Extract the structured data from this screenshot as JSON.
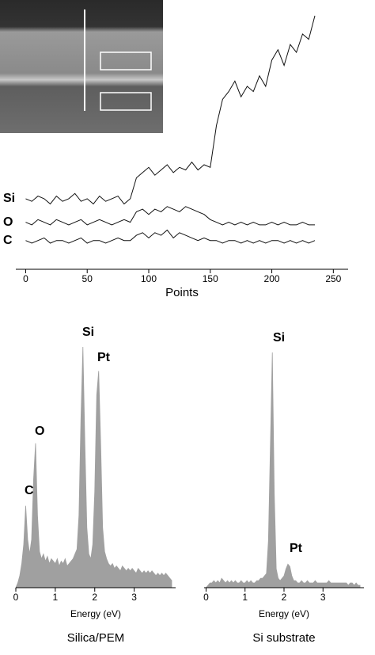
{
  "chart_data": [
    {
      "type": "line",
      "xlabel": "Points",
      "x": [
        0,
        5,
        10,
        15,
        20,
        25,
        30,
        35,
        40,
        45,
        50,
        55,
        60,
        65,
        70,
        75,
        80,
        85,
        90,
        95,
        100,
        105,
        110,
        115,
        120,
        125,
        130,
        135,
        140,
        145,
        150,
        155,
        160,
        165,
        170,
        175,
        180,
        185,
        190,
        195,
        200,
        205,
        210,
        215,
        220,
        225,
        230,
        235
      ],
      "series": [
        {
          "name": "Si",
          "color": "#111111",
          "values": [
            27,
            26,
            28,
            27,
            25,
            28,
            26,
            27,
            29,
            26,
            27,
            25,
            28,
            26,
            27,
            28,
            25,
            27,
            35,
            37,
            39,
            36,
            38,
            40,
            37,
            39,
            38,
            41,
            38,
            40,
            39,
            55,
            65,
            68,
            72,
            66,
            70,
            68,
            74,
            70,
            80,
            84,
            78,
            86,
            83,
            90,
            88,
            97
          ]
        },
        {
          "name": "O",
          "color": "#111111",
          "values": [
            18,
            17,
            19,
            18,
            17,
            19,
            18,
            17,
            18,
            19,
            17,
            18,
            19,
            18,
            17,
            18,
            19,
            18,
            22,
            23,
            21,
            23,
            22,
            24,
            23,
            22,
            24,
            23,
            22,
            21,
            19,
            18,
            17,
            18,
            17,
            18,
            17,
            18,
            17,
            17,
            18,
            17,
            18,
            17,
            17,
            18,
            17,
            17
          ]
        },
        {
          "name": "C",
          "color": "#111111",
          "values": [
            11,
            10,
            11,
            12,
            10,
            11,
            11,
            10,
            11,
            12,
            10,
            11,
            11,
            10,
            11,
            12,
            11,
            11,
            13,
            14,
            12,
            14,
            13,
            15,
            12,
            14,
            13,
            12,
            11,
            12,
            11,
            11,
            10,
            11,
            11,
            10,
            11,
            10,
            11,
            10,
            11,
            11,
            10,
            11,
            10,
            11,
            10,
            11
          ]
        }
      ],
      "xlim": [
        -8,
        262
      ],
      "xticks": [
        0,
        50,
        100,
        150,
        200,
        250
      ],
      "ylim": [
        0,
        100
      ]
    },
    {
      "type": "area",
      "xlabel": "Energy (eV)",
      "caption": "Silica/PEM",
      "color": "#a0a0a0",
      "x": [
        0,
        0.05,
        0.1,
        0.15,
        0.2,
        0.25,
        0.3,
        0.35,
        0.4,
        0.45,
        0.5,
        0.55,
        0.6,
        0.65,
        0.7,
        0.75,
        0.8,
        0.85,
        0.9,
        0.95,
        1,
        1.05,
        1.1,
        1.15,
        1.2,
        1.25,
        1.3,
        1.35,
        1.4,
        1.45,
        1.5,
        1.55,
        1.6,
        1.65,
        1.7,
        1.75,
        1.8,
        1.85,
        1.9,
        1.95,
        2,
        2.05,
        2.1,
        2.15,
        2.2,
        2.25,
        2.3,
        2.35,
        2.4,
        2.45,
        2.5,
        2.55,
        2.6,
        2.65,
        2.7,
        2.75,
        2.8,
        2.85,
        2.9,
        2.95,
        3,
        3.05,
        3.1,
        3.15,
        3.2,
        3.25,
        3.3,
        3.35,
        3.4,
        3.45,
        3.5,
        3.55,
        3.6,
        3.65,
        3.7,
        3.75,
        3.8,
        3.85,
        3.9,
        3.95
      ],
      "values": [
        0,
        2,
        5,
        10,
        18,
        34,
        20,
        14,
        20,
        45,
        60,
        30,
        15,
        12,
        14,
        11,
        13,
        10,
        12,
        11,
        10,
        12,
        9,
        11,
        10,
        12,
        9,
        10,
        11,
        12,
        14,
        16,
        30,
        70,
        100,
        60,
        25,
        14,
        12,
        18,
        40,
        80,
        90,
        60,
        25,
        15,
        12,
        10,
        9,
        10,
        8,
        9,
        8,
        7,
        9,
        8,
        7,
        8,
        7,
        8,
        7,
        6,
        8,
        7,
        6,
        7,
        6,
        7,
        6,
        7,
        6,
        5,
        6,
        5,
        6,
        5,
        6,
        5,
        4,
        3
      ],
      "annotations": [
        "Si",
        "Pt",
        "O",
        "C"
      ],
      "xlim": [
        0,
        4.05
      ],
      "xticks": [
        0,
        1,
        2,
        3
      ],
      "ylim": [
        0,
        100
      ]
    },
    {
      "type": "area",
      "xlabel": "Energy (eV)",
      "caption": "Si substrate",
      "color": "#a0a0a0",
      "x": [
        0,
        0.05,
        0.1,
        0.15,
        0.2,
        0.25,
        0.3,
        0.35,
        0.4,
        0.45,
        0.5,
        0.55,
        0.6,
        0.65,
        0.7,
        0.75,
        0.8,
        0.85,
        0.9,
        0.95,
        1,
        1.05,
        1.1,
        1.15,
        1.2,
        1.25,
        1.3,
        1.35,
        1.4,
        1.45,
        1.5,
        1.55,
        1.6,
        1.65,
        1.7,
        1.75,
        1.8,
        1.85,
        1.9,
        1.95,
        2,
        2.05,
        2.1,
        2.15,
        2.2,
        2.25,
        2.3,
        2.35,
        2.4,
        2.45,
        2.5,
        2.55,
        2.6,
        2.65,
        2.7,
        2.75,
        2.8,
        2.85,
        2.9,
        2.95,
        3,
        3.05,
        3.1,
        3.15,
        3.2,
        3.25,
        3.3,
        3.35,
        3.4,
        3.45,
        3.5,
        3.55,
        3.6,
        3.65,
        3.7,
        3.75,
        3.8,
        3.85,
        3.9,
        3.95
      ],
      "values": [
        0,
        1,
        2,
        2,
        3,
        2,
        3,
        2,
        4,
        3,
        2,
        3,
        2,
        3,
        2,
        3,
        2,
        2,
        3,
        2,
        2,
        3,
        2,
        3,
        2,
        2,
        3,
        3,
        4,
        4,
        5,
        6,
        20,
        60,
        100,
        40,
        8,
        4,
        3,
        4,
        5,
        8,
        10,
        9,
        5,
        3,
        3,
        2,
        2,
        3,
        2,
        2,
        3,
        2,
        2,
        2,
        3,
        2,
        2,
        2,
        2,
        2,
        2,
        3,
        2,
        2,
        2,
        2,
        2,
        2,
        2,
        2,
        2,
        1,
        2,
        2,
        1,
        2,
        1,
        1
      ],
      "annotations": [
        "Si",
        "Pt"
      ],
      "xlim": [
        -0.05,
        4.05
      ],
      "xticks": [
        0,
        1,
        2,
        3
      ],
      "ylim": [
        0,
        100
      ]
    }
  ]
}
